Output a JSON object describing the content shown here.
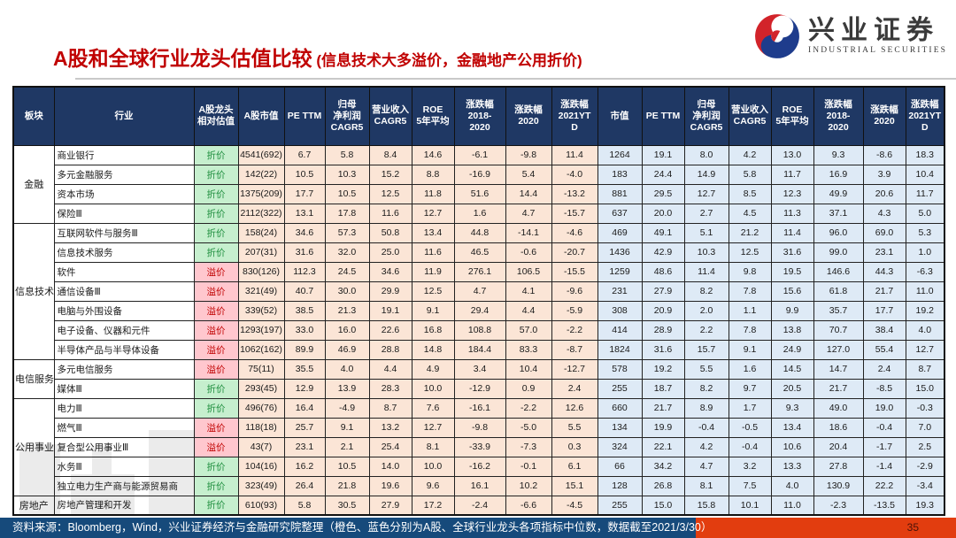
{
  "header": {
    "title_main": "A股和全球行业龙头估值比较",
    "title_sub": " (信息技术大多溢价，金融地产公用折价)",
    "logo": {
      "name_cn": "兴业证券",
      "name_en": "INDUSTRIAL SECURITIES"
    }
  },
  "colors": {
    "accent_red": "#c00000",
    "header_navy": "#1f3864",
    "a_share_fill": "#fbe5d6",
    "global_fill": "#deeaf6",
    "discount_bg": "#c6efce",
    "discount_text": "#1e8e3e",
    "premium_bg": "#ffc7ce",
    "premium_text": "#c00000",
    "footer_navy": "#164a7b",
    "footer_red": "#e23d0f"
  },
  "table": {
    "col_headers": [
      "板块",
      "行业",
      "A股龙头\n相对估值",
      "A股市值",
      "PE TTM",
      "归母\n净利润\nCAGR5",
      "营业收入\nCAGR5",
      "ROE\n5年平均",
      "涨跌幅\n2018-\n2020",
      "涨跌幅\n2020",
      "涨跌幅\n2021YT\nD",
      "市值",
      "PE TTM",
      "归母\n净利润\nCAGR5",
      "营业收入\nCAGR5",
      "ROE\n5年平均",
      "涨跌幅\n2018-\n2020",
      "涨跌幅\n2020",
      "涨跌幅\n2021YT\nD"
    ],
    "groups": [
      {
        "sector": "金融",
        "rows": [
          {
            "industry": "商业银行",
            "valuation": {
              "label": "折价",
              "type": "discount"
            },
            "a_share": [
              "4541(692)",
              "6.7",
              "5.8",
              "8.4",
              "14.6",
              "-6.1",
              "-9.8",
              "11.4"
            ],
            "global": [
              "1264",
              "19.1",
              "8.0",
              "4.2",
              "13.0",
              "9.3",
              "-8.6",
              "18.3"
            ]
          },
          {
            "industry": "多元金融服务",
            "valuation": {
              "label": "折价",
              "type": "discount"
            },
            "a_share": [
              "142(22)",
              "10.5",
              "10.3",
              "15.2",
              "8.8",
              "-16.9",
              "5.4",
              "-4.0"
            ],
            "global": [
              "183",
              "24.4",
              "14.9",
              "5.8",
              "11.7",
              "16.9",
              "3.9",
              "10.4"
            ]
          },
          {
            "industry": "资本市场",
            "valuation": {
              "label": "折价",
              "type": "discount"
            },
            "a_share": [
              "1375(209)",
              "17.7",
              "10.5",
              "12.5",
              "11.8",
              "51.6",
              "14.4",
              "-13.2"
            ],
            "global": [
              "881",
              "29.5",
              "12.7",
              "8.5",
              "12.3",
              "49.9",
              "20.6",
              "11.7"
            ]
          },
          {
            "industry": "保险Ⅲ",
            "valuation": {
              "label": "折价",
              "type": "discount"
            },
            "a_share": [
              "2112(322)",
              "13.1",
              "17.8",
              "11.6",
              "12.7",
              "1.6",
              "4.7",
              "-15.7"
            ],
            "global": [
              "637",
              "20.0",
              "2.7",
              "4.5",
              "11.3",
              "37.1",
              "4.3",
              "5.0"
            ]
          }
        ]
      },
      {
        "sector": "信息技术",
        "rows": [
          {
            "industry": "互联网软件与服务Ⅲ",
            "valuation": {
              "label": "折价",
              "type": "discount"
            },
            "a_share": [
              "158(24)",
              "34.6",
              "57.3",
              "50.8",
              "13.4",
              "44.8",
              "-14.1",
              "-4.6"
            ],
            "global": [
              "469",
              "49.1",
              "5.1",
              "21.2",
              "11.4",
              "96.0",
              "69.0",
              "5.3"
            ]
          },
          {
            "industry": "信息技术服务",
            "valuation": {
              "label": "折价",
              "type": "discount"
            },
            "a_share": [
              "207(31)",
              "31.6",
              "32.0",
              "25.0",
              "11.6",
              "46.5",
              "-0.6",
              "-20.7"
            ],
            "global": [
              "1436",
              "42.9",
              "10.3",
              "12.5",
              "31.6",
              "99.0",
              "23.1",
              "1.0"
            ]
          },
          {
            "industry": "软件",
            "valuation": {
              "label": "溢价",
              "type": "premium"
            },
            "a_share": [
              "830(126)",
              "112.3",
              "24.5",
              "34.6",
              "11.9",
              "276.1",
              "106.5",
              "-15.5"
            ],
            "global": [
              "1259",
              "48.6",
              "11.4",
              "9.8",
              "19.5",
              "146.6",
              "44.3",
              "-6.3"
            ]
          },
          {
            "industry": "通信设备Ⅲ",
            "valuation": {
              "label": "溢价",
              "type": "premium"
            },
            "a_share": [
              "321(49)",
              "40.7",
              "30.0",
              "29.9",
              "12.5",
              "4.7",
              "4.1",
              "-9.6"
            ],
            "global": [
              "231",
              "27.9",
              "8.2",
              "7.8",
              "15.6",
              "61.8",
              "21.7",
              "11.0"
            ]
          },
          {
            "industry": "电脑与外围设备",
            "valuation": {
              "label": "溢价",
              "type": "premium"
            },
            "a_share": [
              "339(52)",
              "38.5",
              "21.3",
              "19.1",
              "9.1",
              "29.4",
              "4.4",
              "-5.9"
            ],
            "global": [
              "308",
              "20.9",
              "2.0",
              "1.1",
              "9.9",
              "35.7",
              "17.7",
              "19.2"
            ]
          },
          {
            "industry": "电子设备、仪器和元件",
            "valuation": {
              "label": "溢价",
              "type": "premium"
            },
            "a_share": [
              "1293(197)",
              "33.0",
              "16.0",
              "22.6",
              "16.8",
              "108.8",
              "57.0",
              "-2.2"
            ],
            "global": [
              "414",
              "28.9",
              "2.2",
              "7.8",
              "13.8",
              "70.7",
              "38.4",
              "4.0"
            ]
          },
          {
            "industry": "半导体产品与半导体设备",
            "valuation": {
              "label": "溢价",
              "type": "premium"
            },
            "a_share": [
              "1062(162)",
              "89.9",
              "46.9",
              "28.8",
              "14.8",
              "184.4",
              "83.3",
              "-8.7"
            ],
            "global": [
              "1824",
              "31.6",
              "15.7",
              "9.1",
              "24.9",
              "127.0",
              "55.4",
              "12.7"
            ]
          }
        ]
      },
      {
        "sector": "电信服务",
        "rows": [
          {
            "industry": "多元电信服务",
            "valuation": {
              "label": "溢价",
              "type": "premium"
            },
            "a_share": [
              "75(11)",
              "35.5",
              "4.0",
              "4.4",
              "4.9",
              "3.4",
              "10.4",
              "-12.7"
            ],
            "global": [
              "578",
              "19.2",
              "5.5",
              "1.6",
              "14.5",
              "14.7",
              "2.4",
              "8.7"
            ]
          },
          {
            "industry": "媒体Ⅲ",
            "valuation": {
              "label": "折价",
              "type": "discount"
            },
            "a_share": [
              "293(45)",
              "12.9",
              "13.9",
              "28.3",
              "10.0",
              "-12.9",
              "0.9",
              "2.4"
            ],
            "global": [
              "255",
              "18.7",
              "8.2",
              "9.7",
              "20.5",
              "21.7",
              "-8.5",
              "15.0"
            ]
          }
        ]
      },
      {
        "sector": "公用事业",
        "rows": [
          {
            "industry": "电力Ⅲ",
            "valuation": {
              "label": "折价",
              "type": "discount"
            },
            "a_share": [
              "496(76)",
              "16.4",
              "-4.9",
              "8.7",
              "7.6",
              "-16.1",
              "-2.2",
              "12.6"
            ],
            "global": [
              "660",
              "21.7",
              "8.9",
              "1.7",
              "9.3",
              "49.0",
              "19.0",
              "-0.3"
            ]
          },
          {
            "industry": "燃气Ⅲ",
            "valuation": {
              "label": "溢价",
              "type": "premium"
            },
            "a_share": [
              "118(18)",
              "25.7",
              "9.1",
              "13.2",
              "12.7",
              "-9.8",
              "-5.0",
              "5.5"
            ],
            "global": [
              "134",
              "19.9",
              "-0.4",
              "-0.5",
              "13.4",
              "18.6",
              "-0.4",
              "7.0"
            ]
          },
          {
            "industry": "复合型公用事业Ⅲ",
            "valuation": {
              "label": "溢价",
              "type": "premium"
            },
            "a_share": [
              "43(7)",
              "23.1",
              "2.1",
              "25.4",
              "8.1",
              "-33.9",
              "-7.3",
              "0.3"
            ],
            "global": [
              "324",
              "22.1",
              "4.2",
              "-0.4",
              "10.6",
              "20.4",
              "-1.7",
              "2.5"
            ]
          },
          {
            "industry": "水务Ⅲ",
            "valuation": {
              "label": "折价",
              "type": "discount"
            },
            "a_share": [
              "104(16)",
              "16.2",
              "10.5",
              "14.0",
              "10.0",
              "-16.2",
              "-0.1",
              "6.1"
            ],
            "global": [
              "66",
              "34.2",
              "4.7",
              "3.2",
              "13.3",
              "27.8",
              "-1.4",
              "-2.9"
            ]
          },
          {
            "industry": "独立电力生产商与能源贸易商",
            "valuation": {
              "label": "折价",
              "type": "discount"
            },
            "a_share": [
              "323(49)",
              "26.4",
              "21.8",
              "19.6",
              "9.6",
              "16.1",
              "10.2",
              "15.1"
            ],
            "global": [
              "128",
              "26.8",
              "8.1",
              "7.5",
              "4.0",
              "130.9",
              "22.2",
              "-3.4"
            ]
          }
        ]
      },
      {
        "sector": "房地产",
        "rows": [
          {
            "industry": "房地产管理和开发",
            "valuation": {
              "label": "折价",
              "type": "discount"
            },
            "a_share": [
              "610(93)",
              "5.8",
              "30.5",
              "27.9",
              "17.2",
              "-2.4",
              "-6.6",
              "-4.5"
            ],
            "global": [
              "255",
              "15.0",
              "15.8",
              "10.1",
              "11.0",
              "-2.3",
              "-13.5",
              "19.3"
            ]
          }
        ]
      }
    ]
  },
  "footer": {
    "source_text": "资料来源：Bloomberg，Wind，兴业证券经济与金融研究院整理（橙色、蓝色分别为A股、全球行业龙头各项指标中位数，数据截至2021/3/30）",
    "page_number": "35"
  }
}
